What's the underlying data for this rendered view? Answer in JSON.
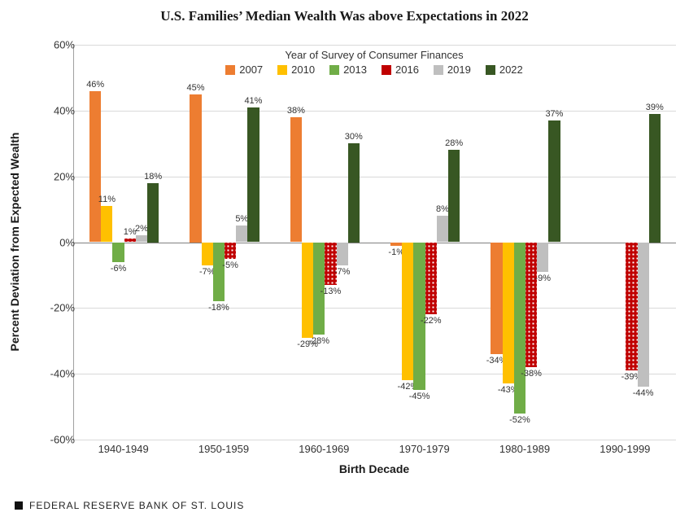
{
  "title": "U.S. Families’ Median Wealth Was above Expectations in 2022",
  "title_fontsize": 17,
  "ylabel": "Percent Deviation from Expected Wealth",
  "xlabel": "Birth Decade",
  "axis_label_fontsize": 14,
  "tick_fontsize": 13,
  "footer_text": "FEDERAL RESERVE BANK OF ST. LOUIS",
  "legend_title": "Year of Survey of Consumer Finances",
  "ylim": [
    -60,
    60
  ],
  "ytick_step": 20,
  "yticks": [
    "-60%",
    "-40%",
    "-20%",
    "0%",
    "20%",
    "40%",
    "60%"
  ],
  "background_color": "#ffffff",
  "grid_color": "#d9d9d9",
  "series": [
    {
      "key": "2007",
      "label": "2007",
      "color": "#ed7d31",
      "pattern": "solid"
    },
    {
      "key": "2010",
      "label": "2010",
      "color": "#ffc000",
      "pattern": "solid"
    },
    {
      "key": "2013",
      "label": "2013",
      "color": "#70ad47",
      "pattern": "solid"
    },
    {
      "key": "2016",
      "label": "2016",
      "color": "#c00000",
      "pattern": "dots"
    },
    {
      "key": "2019",
      "label": "2019",
      "color": "#bfbfbf",
      "pattern": "solid"
    },
    {
      "key": "2022",
      "label": "2022",
      "color": "#385723",
      "pattern": "solid"
    }
  ],
  "categories": [
    {
      "label": "1940-1949",
      "values": {
        "2007": 46,
        "2010": 11,
        "2013": -6,
        "2016": 1,
        "2019": 2,
        "2022": 18
      }
    },
    {
      "label": "1950-1959",
      "values": {
        "2007": 45,
        "2010": -7,
        "2013": -18,
        "2016": -5,
        "2019": 5,
        "2022": 41
      }
    },
    {
      "label": "1960-1969",
      "values": {
        "2007": 38,
        "2010": -29,
        "2013": -28,
        "2016": -13,
        "2019": -7,
        "2022": 30
      }
    },
    {
      "label": "1970-1979",
      "values": {
        "2007": -1,
        "2010": -42,
        "2013": -45,
        "2016": -22,
        "2019": 8,
        "2022": 28
      }
    },
    {
      "label": "1980-1989",
      "values": {
        "2007": -34,
        "2010": -43,
        "2013": -52,
        "2016": -38,
        "2019": -9,
        "2022": 37
      }
    },
    {
      "label": "1990-1999",
      "values": {
        "2007": null,
        "2010": null,
        "2013": null,
        "2016": -39,
        "2019": -44,
        "2022": 39
      }
    }
  ],
  "bar_width_ratio": 0.115,
  "group_gap_ratio": 0.02
}
